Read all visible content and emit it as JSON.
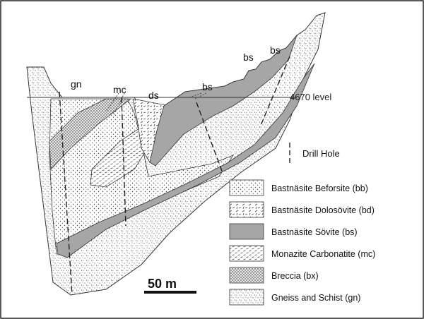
{
  "section_labels": {
    "gn": "gn",
    "mc": "mc",
    "ds": "ds",
    "bs_center": "bs",
    "bs_upper1": "bs",
    "bs_upper2": "bs"
  },
  "level_label": "4670 level",
  "drill_hole_label": "Drill Hole",
  "scale_bar_label": "50 m",
  "legend": [
    {
      "label": "Bastnäsite Beforsite (bb)",
      "pattern": "fine-dots"
    },
    {
      "label": "Bastnäsite Dolosövite (bd)",
      "pattern": "dashes"
    },
    {
      "label": "Bastnäsite Sövite (bs)",
      "pattern": "solid-gray"
    },
    {
      "label": "Monazite Carbonatite (mc)",
      "pattern": "short-dashes"
    },
    {
      "label": "Breccia (bx)",
      "pattern": "dense-dots"
    },
    {
      "label": "Gneiss and Schist (gn)",
      "pattern": "speckle"
    }
  ],
  "colors": {
    "frame": "#222222",
    "sovite_fill": "#a6a6a6",
    "pattern_ink": "#444444"
  }
}
